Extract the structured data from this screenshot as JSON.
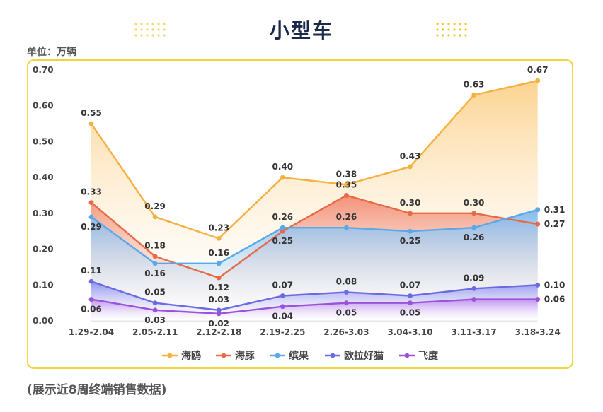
{
  "page": {
    "unit_label": "单位：万辆",
    "footnote": "(展示近8周终端销售数据)"
  },
  "chart_data": {
    "type": "area",
    "title": "小型车",
    "categories": [
      "1.29-2.04",
      "2.05-2.11",
      "2.12-2.18",
      "2.19-2.25",
      "2.26-3.03",
      "3.04-3.10",
      "3.11-3.17",
      "3.18-3.24"
    ],
    "ylim": [
      0,
      0.7
    ],
    "yticks": [
      "0.00",
      "0.10",
      "0.20",
      "0.30",
      "0.40",
      "0.50",
      "0.60",
      "0.70"
    ],
    "grid": false,
    "legend_position": "bottom",
    "series": [
      {
        "name": "海鸥",
        "values": [
          0.55,
          0.29,
          0.23,
          0.4,
          0.38,
          0.43,
          0.63,
          0.67
        ],
        "color": "#f5b041",
        "fill": "#fbd18a",
        "labelPos": "above"
      },
      {
        "name": "海豚",
        "values": [
          0.33,
          0.18,
          0.12,
          0.25,
          0.35,
          0.3,
          0.3,
          0.27
        ],
        "color": "#e56a45",
        "fill": "#f28b72",
        "labelPos": [
          "above",
          "above",
          "below",
          "below",
          "above",
          "above",
          "above",
          "right"
        ]
      },
      {
        "name": "缤果",
        "values": [
          0.29,
          0.16,
          0.16,
          0.26,
          0.26,
          0.25,
          0.26,
          0.31
        ],
        "color": "#5aa8e8",
        "fill": "#7cb8f0",
        "labelPos": [
          "below",
          "below",
          "above",
          "above",
          "above",
          "below",
          "below",
          "right"
        ]
      },
      {
        "name": "欧拉好猫",
        "values": [
          0.11,
          0.05,
          0.03,
          0.07,
          0.08,
          0.07,
          0.09,
          0.1
        ],
        "color": "#6a6be0",
        "fill": "#8a8cf0",
        "labelPos": [
          "above",
          "above",
          "above",
          "above",
          "above",
          "above",
          "above",
          "right"
        ]
      },
      {
        "name": "飞度",
        "values": [
          0.06,
          0.03,
          0.02,
          0.04,
          0.05,
          0.05,
          0.06,
          0.06
        ],
        "color": "#9b52d8",
        "fill": "#c290f0",
        "labelPos": [
          "below",
          "below",
          "below",
          "below",
          "below",
          "below",
          "none",
          "right"
        ]
      }
    ]
  }
}
